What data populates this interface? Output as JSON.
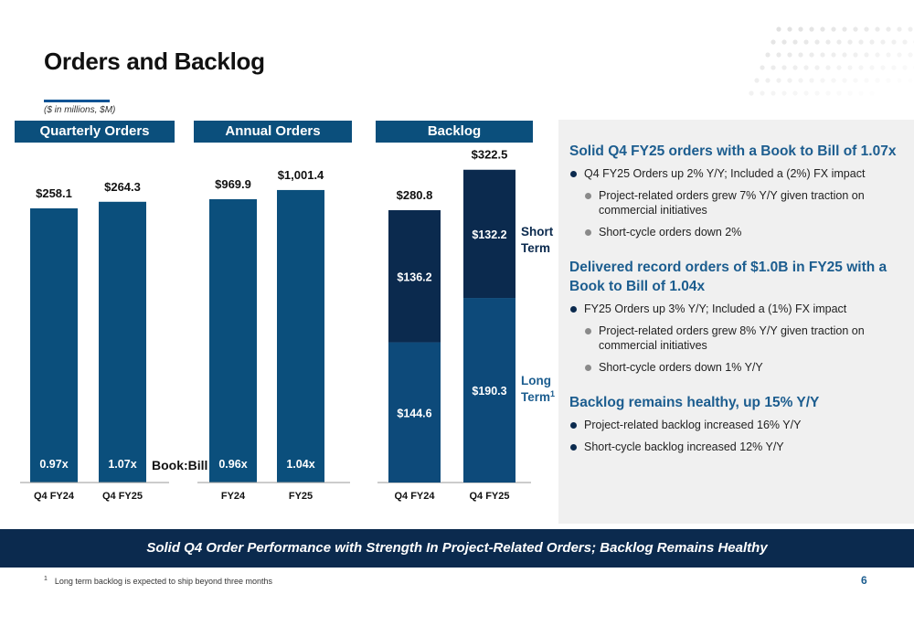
{
  "title": "Orders and Backlog",
  "units_note": "($ in millions, $M)",
  "page_number": "6",
  "footer_banner": "Solid Q4 Order Performance with Strength In Project-Related Orders; Backlog Remains Healthy",
  "footnote": {
    "marker": "1",
    "text": "Long term backlog is expected to ship beyond three months"
  },
  "book_bill_label": "Book:Bill",
  "colors": {
    "bar": "#0b4f7c",
    "long_term": "#0d4a7a",
    "short_term": "#0b2a4e",
    "header": "#0b4f7c",
    "banner": "#0b2a4e"
  },
  "side_panel": {
    "sections": [
      {
        "heading": "Solid Q4 FY25 orders with a Book to Bill of 1.07x",
        "bullets": [
          {
            "text": "Q4 FY25 Orders up 2% Y/Y; Included a (2%) FX impact",
            "level": 1
          },
          {
            "text": "Project-related orders grew 7% Y/Y given traction on commercial initiatives",
            "level": 2
          },
          {
            "text": "Short-cycle orders down 2%",
            "level": 2
          }
        ]
      },
      {
        "heading": "Delivered record orders of $1.0B in FY25 with a Book to Bill of 1.04x",
        "bullets": [
          {
            "text": "FY25 Orders up 3% Y/Y; Included a (1%) FX impact",
            "level": 1
          },
          {
            "text": "Project-related orders grew 8% Y/Y given traction on commercial initiatives",
            "level": 2
          },
          {
            "text": "Short-cycle orders down 1% Y/Y",
            "level": 2
          }
        ]
      },
      {
        "heading": "Backlog remains healthy, up 15% Y/Y",
        "bullets": [
          {
            "text": "Project-related backlog increased 16% Y/Y",
            "level": 1
          },
          {
            "text": "Short-cycle backlog increased 12% Y/Y",
            "level": 1
          }
        ]
      }
    ]
  },
  "chart_data": [
    {
      "type": "bar",
      "title": "Quarterly Orders",
      "categories": [
        "Q4 FY24",
        "Q4 FY25"
      ],
      "values": [
        258.1,
        264.3
      ],
      "value_labels": [
        "$258.1",
        "$264.3"
      ],
      "book_to_bill": [
        "0.97x",
        "1.07x"
      ]
    },
    {
      "type": "bar",
      "title": "Annual Orders",
      "categories": [
        "FY24",
        "FY25"
      ],
      "values": [
        969.9,
        1001.4
      ],
      "value_labels": [
        "$969.9",
        "$1,001.4"
      ],
      "book_to_bill": [
        "0.96x",
        "1.04x"
      ]
    },
    {
      "type": "bar",
      "stacked": true,
      "title": "Backlog",
      "categories": [
        "Q4 FY24",
        "Q4 FY25"
      ],
      "totals": [
        280.8,
        322.5
      ],
      "total_labels": [
        "$280.8",
        "$322.5"
      ],
      "series": [
        {
          "name": "Long Term",
          "footnote_marker": "1",
          "values": [
            144.6,
            190.3
          ],
          "labels": [
            "$144.6",
            "$190.3"
          ]
        },
        {
          "name": "Short Term",
          "values": [
            136.2,
            132.2
          ],
          "labels": [
            "$136.2",
            "$132.2"
          ]
        }
      ]
    }
  ]
}
